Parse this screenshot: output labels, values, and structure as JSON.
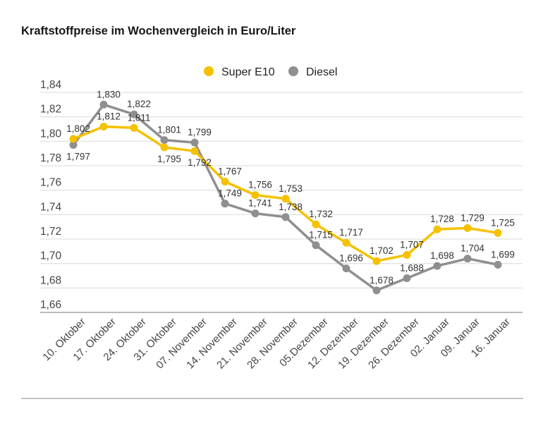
{
  "title": "Kraftstoffpreise im Wochenvergleich in Euro/Liter",
  "legend": {
    "items": [
      {
        "id": "super-e10",
        "label": "Super E10",
        "color": "#f5c100"
      },
      {
        "id": "diesel",
        "label": "Diesel",
        "color": "#8f8f8f"
      }
    ]
  },
  "colors": {
    "background": "#ffffff",
    "grid": "#d9d9d9",
    "axis_line": "#a3a3a3",
    "tick_text": "#454545",
    "value_text": "#333333",
    "title_text": "#161616",
    "divider": "#c3c3c3"
  },
  "chart_data": {
    "type": "line",
    "title": "Kraftstoffpreise im Wochenvergleich in Euro/Liter",
    "xlabel": "",
    "ylabel": "",
    "grid": true,
    "legend_position": "top-center",
    "categories": [
      "10. Oktober",
      "17. Oktober",
      "24. Oktober",
      "31. Oktober",
      "07. November",
      "14. November",
      "21. November",
      "28. November",
      "05.Dezember",
      "12. Dezember",
      "19. Dezember",
      "26. Dezember",
      "02. Januar",
      "09. Januar",
      "16. Januar"
    ],
    "y_axis": {
      "min": 1.66,
      "max": 1.84,
      "ticks": [
        "1,84",
        "1,82",
        "1,80",
        "1,78",
        "1,76",
        "1,74",
        "1,72",
        "1,70",
        "1,68",
        "1,66"
      ],
      "tick_values": [
        1.84,
        1.82,
        1.8,
        1.78,
        1.76,
        1.74,
        1.72,
        1.7,
        1.68,
        1.66
      ]
    },
    "series": [
      {
        "id": "super-e10",
        "name": "Super E10",
        "color": "#f5c100",
        "values": [
          1.802,
          1.812,
          1.811,
          1.795,
          1.792,
          1.767,
          1.756,
          1.753,
          1.732,
          1.717,
          1.702,
          1.707,
          1.728,
          1.729,
          1.725
        ],
        "point_labels": [
          "1,802",
          "1,812",
          "1,811",
          "1,795",
          "1,792",
          "1,767",
          "1,756",
          "1,753",
          "1,732",
          "1,717",
          "1,702",
          "1,707",
          "1,728",
          "1,729",
          "1,725"
        ],
        "label_position": [
          "above",
          "above",
          "above",
          "below",
          "below",
          "above",
          "above",
          "above",
          "above",
          "above",
          "above",
          "above",
          "above",
          "above",
          "above"
        ]
      },
      {
        "id": "diesel",
        "name": "Diesel",
        "color": "#8f8f8f",
        "values": [
          1.797,
          1.83,
          1.822,
          1.801,
          1.799,
          1.749,
          1.741,
          1.738,
          1.715,
          1.696,
          1.678,
          1.688,
          1.698,
          1.704,
          1.699
        ],
        "point_labels": [
          "1,797",
          "1,830",
          "1,822",
          "1,801",
          "1,799",
          "1,749",
          "1,741",
          "1,738",
          "1,715",
          "1,696",
          "1,678",
          "1,688",
          "1,698",
          "1,704",
          "1,699"
        ],
        "label_position": [
          "below",
          "above",
          "above",
          "above",
          "above",
          "above",
          "above",
          "above",
          "above",
          "above",
          "above",
          "above",
          "above",
          "above",
          "above"
        ]
      }
    ]
  }
}
